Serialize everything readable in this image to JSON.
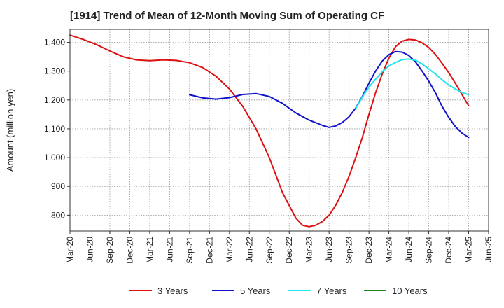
{
  "chart_data": {
    "type": "line",
    "title": "[1914]  Trend of Mean of 12-Month Moving Sum of Operating CF",
    "xlabel": "",
    "ylabel": "Amount (million yen)",
    "ylim": [
      745,
      1445
    ],
    "y_ticks": [
      800,
      900,
      1000,
      1100,
      1200,
      1300,
      1400
    ],
    "y_tick_labels": [
      "800",
      "900",
      "1,000",
      "1,100",
      "1,200",
      "1,300",
      "1,400"
    ],
    "x_tick_labels": [
      "Mar-20",
      "Jun-20",
      "Sep-20",
      "Dec-20",
      "Mar-21",
      "Jun-21",
      "Sep-21",
      "Dec-21",
      "Mar-22",
      "Jun-22",
      "Sep-22",
      "Dec-22",
      "Mar-23",
      "Jun-23",
      "Sep-23",
      "Dec-23",
      "Mar-24",
      "Jun-24",
      "Sep-24",
      "Dec-24",
      "Mar-25",
      "Jun-25"
    ],
    "x_unit": "months since Mar-20",
    "x_range": [
      0,
      63
    ],
    "grid": true,
    "legend_position": "bottom",
    "series": [
      {
        "name": "3 Years",
        "color": "#dd1111",
        "x": [
          0,
          2,
          4,
          6,
          8,
          10,
          12,
          14,
          16,
          18,
          20,
          22,
          24,
          26,
          28,
          30,
          32,
          34,
          35,
          36,
          37,
          38,
          39,
          40,
          41,
          42,
          43,
          44,
          45,
          46,
          47,
          48,
          49,
          50,
          51,
          52,
          53,
          54,
          55,
          56,
          57,
          58,
          60
        ],
        "values": [
          1425,
          1410,
          1392,
          1370,
          1350,
          1339,
          1336,
          1339,
          1337,
          1329,
          1312,
          1282,
          1238,
          1178,
          1100,
          1000,
          878,
          790,
          765,
          760,
          765,
          778,
          800,
          835,
          880,
          935,
          1000,
          1070,
          1150,
          1225,
          1290,
          1345,
          1385,
          1404,
          1410,
          1408,
          1398,
          1382,
          1358,
          1327,
          1295,
          1258,
          1180
        ]
      },
      {
        "name": "5 Years",
        "color": "#1111cc",
        "x": [
          18,
          20,
          22,
          24,
          26,
          28,
          30,
          32,
          34,
          36,
          38,
          39,
          40,
          41,
          42,
          43,
          44,
          45,
          46,
          47,
          48,
          49,
          50,
          51,
          52,
          53,
          54,
          55,
          56,
          57,
          58,
          59,
          60
        ],
        "values": [
          1218,
          1207,
          1203,
          1208,
          1219,
          1222,
          1212,
          1188,
          1155,
          1130,
          1112,
          1105,
          1110,
          1122,
          1142,
          1172,
          1212,
          1258,
          1300,
          1335,
          1357,
          1368,
          1366,
          1354,
          1332,
          1300,
          1265,
          1225,
          1178,
          1140,
          1108,
          1085,
          1070
        ]
      },
      {
        "name": "7 Years",
        "color": "#22e5ee",
        "x": [
          43,
          44,
          45,
          46,
          47,
          48,
          49,
          50,
          51,
          52,
          53,
          54,
          55,
          56,
          57,
          58,
          59,
          60
        ],
        "values": [
          1170,
          1210,
          1245,
          1272,
          1298,
          1318,
          1330,
          1340,
          1342,
          1338,
          1325,
          1308,
          1290,
          1270,
          1252,
          1238,
          1226,
          1218
        ]
      },
      {
        "name": "10 Years",
        "color": "#228822",
        "x": [],
        "values": []
      }
    ]
  }
}
